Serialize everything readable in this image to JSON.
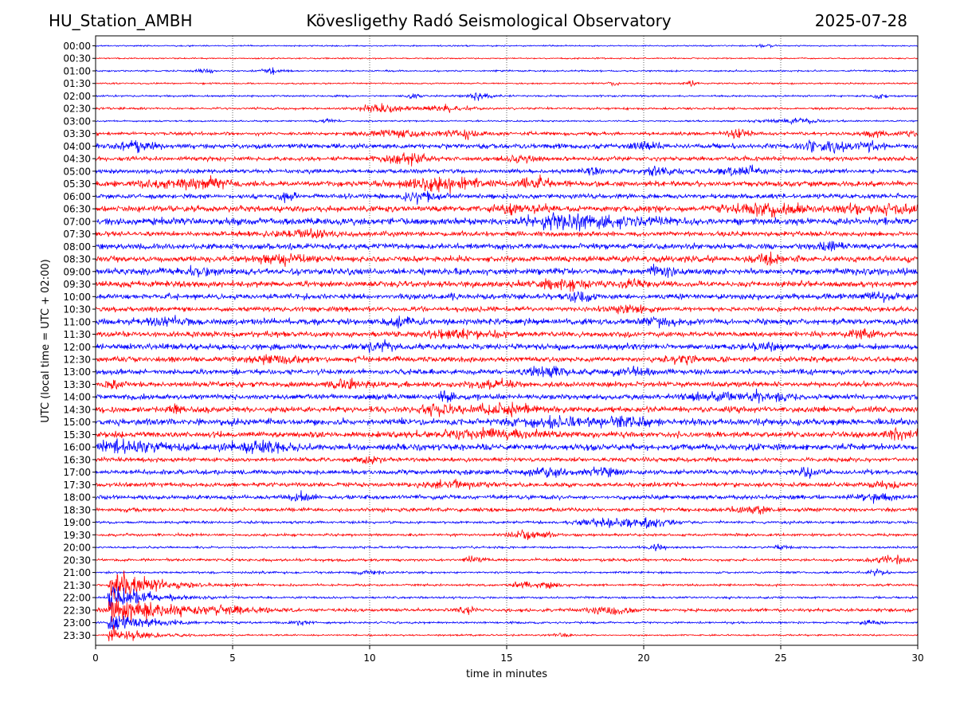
{
  "header": {
    "station": "HU_Station_AMBH",
    "observatory": "Kövesligethy Radó Seismological Observatory",
    "date": "2025-07-28"
  },
  "chart_data": {
    "type": "line",
    "xlabel": "time in minutes",
    "ylabel": "UTC (local time = UTC + 02:00)",
    "xlim": [
      0,
      30
    ],
    "xticks": [
      "0",
      "5",
      "10",
      "15",
      "20",
      "25",
      "30"
    ],
    "grid": "vertical dotted lines at 5-minute intervals",
    "trace_colors": [
      "#0000ff",
      "#ff0000"
    ],
    "rows": [
      {
        "label": "00:00",
        "noise": 0.25,
        "bursts": [
          [
            24.5,
            0.4,
            0.3
          ]
        ]
      },
      {
        "label": "00:30",
        "noise": 0.25,
        "bursts": []
      },
      {
        "label": "01:00",
        "noise": 0.3,
        "bursts": [
          [
            4,
            0.8,
            0.3
          ],
          [
            6.4,
            1.3,
            0.3
          ]
        ]
      },
      {
        "label": "01:30",
        "noise": 0.3,
        "bursts": [
          [
            18.9,
            0.9,
            0.2
          ],
          [
            21.7,
            0.9,
            0.2
          ]
        ]
      },
      {
        "label": "02:00",
        "noise": 0.35,
        "bursts": [
          [
            11.6,
            1.1,
            0.2
          ],
          [
            14,
            1.5,
            0.35
          ],
          [
            28.6,
            0.7,
            0.3
          ]
        ]
      },
      {
        "label": "02:30",
        "noise": 0.4,
        "bursts": [
          [
            10.5,
            1.5,
            0.9
          ],
          [
            12.8,
            1.3,
            0.7
          ]
        ]
      },
      {
        "label": "03:00",
        "noise": 0.3,
        "bursts": [
          [
            8.5,
            0.7,
            0.3
          ],
          [
            25.5,
            0.8,
            1.2
          ]
        ]
      },
      {
        "label": "03:30",
        "noise": 0.6,
        "bursts": [
          [
            11,
            1.5,
            1
          ],
          [
            13.5,
            1.3,
            0.8
          ],
          [
            23.4,
            1.5,
            0.4
          ],
          [
            28.5,
            1.2,
            0.4
          ],
          [
            29.7,
            1,
            0.4
          ]
        ]
      },
      {
        "label": "04:00",
        "noise": 0.9,
        "bursts": [
          [
            1.5,
            1.3,
            0.7
          ],
          [
            20,
            1.5,
            0.5
          ],
          [
            26.7,
            1.5,
            1.2
          ],
          [
            28.4,
            1.3,
            0.4
          ]
        ]
      },
      {
        "label": "04:30",
        "noise": 0.8,
        "bursts": [
          [
            11.3,
            1.8,
            0.7
          ],
          [
            15.5,
            1.1,
            0.6
          ]
        ]
      },
      {
        "label": "05:00",
        "noise": 0.8,
        "bursts": [
          [
            20.6,
            1.5,
            0.6
          ],
          [
            23.4,
            1.4,
            0.9
          ],
          [
            18.2,
            1.1,
            0.3
          ]
        ]
      },
      {
        "label": "05:30",
        "noise": 1.0,
        "bursts": [
          [
            3.5,
            1.5,
            1.5
          ],
          [
            12.5,
            1.8,
            1.5
          ],
          [
            16,
            1.5,
            0.7
          ]
        ]
      },
      {
        "label": "06:00",
        "noise": 0.9,
        "bursts": [
          [
            7,
            1.6,
            0.3
          ],
          [
            11.9,
            1.6,
            0.6
          ]
        ]
      },
      {
        "label": "06:30",
        "noise": 1.1,
        "bursts": [
          [
            24.5,
            1.6,
            1.5
          ],
          [
            28.5,
            1.3,
            1.3
          ],
          [
            15.5,
            1.3,
            1
          ]
        ]
      },
      {
        "label": "07:00",
        "noise": 1.3,
        "bursts": [
          [
            18.8,
            1.6,
            2
          ],
          [
            16.8,
            1.5,
            1.2
          ]
        ]
      },
      {
        "label": "07:30",
        "noise": 0.9,
        "bursts": [
          [
            7.5,
            1.3,
            1
          ]
        ]
      },
      {
        "label": "08:00",
        "noise": 1.1,
        "bursts": [
          [
            26.8,
            1.4,
            0.6
          ]
        ]
      },
      {
        "label": "08:30",
        "noise": 1.1,
        "bursts": [
          [
            6.8,
            1.6,
            0.9
          ],
          [
            24.5,
            1.2,
            0.7
          ]
        ]
      },
      {
        "label": "09:00",
        "noise": 1.2,
        "bursts": [
          [
            20.6,
            1.4,
            0.4
          ],
          [
            3.8,
            1.3,
            0.4
          ]
        ]
      },
      {
        "label": "09:30",
        "noise": 1.1,
        "bursts": [
          [
            17,
            1.5,
            1.2
          ],
          [
            19.5,
            1.2,
            0.5
          ]
        ]
      },
      {
        "label": "10:00",
        "noise": 1.0,
        "bursts": [
          [
            17.7,
            1.8,
            0.4
          ],
          [
            28.5,
            1.2,
            0.6
          ]
        ]
      },
      {
        "label": "10:30",
        "noise": 0.9,
        "bursts": [
          [
            19.5,
            1.2,
            0.7
          ]
        ]
      },
      {
        "label": "11:00",
        "noise": 1.1,
        "bursts": [
          [
            2.5,
            1.3,
            1
          ],
          [
            11.2,
            1.3,
            0.8
          ],
          [
            20.5,
            1.3,
            0.8
          ]
        ]
      },
      {
        "label": "11:30",
        "noise": 1.0,
        "bursts": [
          [
            13.5,
            1.4,
            1.2
          ],
          [
            28,
            1.2,
            0.6
          ]
        ]
      },
      {
        "label": "12:00",
        "noise": 1.1,
        "bursts": [
          [
            10.5,
            1.3,
            0.6
          ],
          [
            24.5,
            1.3,
            0.5
          ]
        ]
      },
      {
        "label": "12:30",
        "noise": 1.0,
        "bursts": [
          [
            6.5,
            1.3,
            1
          ],
          [
            21.5,
            1.2,
            0.8
          ]
        ]
      },
      {
        "label": "13:00",
        "noise": 1.0,
        "bursts": [
          [
            16.5,
            1.5,
            0.7
          ],
          [
            19.5,
            1.3,
            0.8
          ]
        ]
      },
      {
        "label": "13:30",
        "noise": 1.0,
        "bursts": [
          [
            0.6,
            1.6,
            0.3
          ],
          [
            9.3,
            1.2,
            0.8
          ],
          [
            14.5,
            1.2,
            0.8
          ]
        ]
      },
      {
        "label": "14:00",
        "noise": 1.0,
        "bursts": [
          [
            12.8,
            2.0,
            0.3
          ],
          [
            24.5,
            1.8,
            0.8
          ],
          [
            22.5,
            1.4,
            0.8
          ]
        ]
      },
      {
        "label": "14:30",
        "noise": 1.1,
        "bursts": [
          [
            12.6,
            2.0,
            0.6
          ],
          [
            15,
            1.5,
            1.2
          ],
          [
            3,
            1.2,
            0.3
          ]
        ]
      },
      {
        "label": "15:00",
        "noise": 1.2,
        "bursts": [
          [
            16.5,
            1.5,
            1.5
          ],
          [
            19.5,
            1.2,
            0.8
          ]
        ]
      },
      {
        "label": "15:30",
        "noise": 1.1,
        "bursts": [
          [
            14.5,
            1.4,
            2
          ],
          [
            29.5,
            1.6,
            0.8
          ]
        ]
      },
      {
        "label": "16:00",
        "noise": 1.2,
        "bursts": [
          [
            1.2,
            1.6,
            1.5
          ],
          [
            6,
            1.8,
            1.2
          ]
        ]
      },
      {
        "label": "16:30",
        "noise": 0.8,
        "bursts": [
          [
            10,
            1.2,
            0.4
          ]
        ]
      },
      {
        "label": "17:00",
        "noise": 0.9,
        "bursts": [
          [
            16.5,
            1.4,
            0.8
          ],
          [
            26,
            1.6,
            0.4
          ],
          [
            18.5,
            1.2,
            0.6
          ]
        ]
      },
      {
        "label": "17:30",
        "noise": 0.8,
        "bursts": [
          [
            13,
            1.2,
            1.2
          ],
          [
            28.8,
            1.1,
            0.5
          ]
        ]
      },
      {
        "label": "18:00",
        "noise": 0.8,
        "bursts": [
          [
            7.5,
            1.2,
            0.5
          ],
          [
            28.5,
            1.2,
            0.7
          ]
        ]
      },
      {
        "label": "18:30",
        "noise": 0.7,
        "bursts": [
          [
            24,
            1.6,
            0.7
          ]
        ]
      },
      {
        "label": "19:00",
        "noise": 0.5,
        "bursts": [
          [
            19,
            1.7,
            1.3
          ],
          [
            20.5,
            1.3,
            0.6
          ]
        ]
      },
      {
        "label": "19:30",
        "noise": 0.5,
        "bursts": [
          [
            16,
            1.3,
            0.8
          ]
        ]
      },
      {
        "label": "20:00",
        "noise": 0.4,
        "bursts": [
          [
            20.5,
            1.3,
            0.3
          ],
          [
            25,
            0.8,
            0.4
          ]
        ]
      },
      {
        "label": "20:30",
        "noise": 0.5,
        "bursts": [
          [
            13.8,
            1.3,
            0.3
          ],
          [
            29,
            1.0,
            0.8
          ]
        ]
      },
      {
        "label": "21:00",
        "noise": 0.4,
        "bursts": [
          [
            28.5,
            1.1,
            0.3
          ],
          [
            10,
            0.7,
            0.5
          ]
        ]
      },
      {
        "label": "21:30",
        "noise": 0.4,
        "bursts": [
          [
            15.6,
            1.3,
            0.3
          ],
          [
            16.5,
            1.1,
            0.5
          ]
        ]
      },
      {
        "label": "22:00",
        "noise": 0.4,
        "bursts": []
      },
      {
        "label": "22:30",
        "noise": 0.6,
        "bursts": [
          [
            2,
            1.6,
            1.5
          ],
          [
            5,
            1.5,
            1.2
          ],
          [
            18.8,
            1.5,
            0.8
          ],
          [
            13.5,
            1.0,
            0.3
          ]
        ]
      },
      {
        "label": "23:00",
        "noise": 0.4,
        "bursts": [
          [
            28.2,
            1.1,
            0.3
          ],
          [
            7.5,
            0.8,
            0.4
          ]
        ]
      },
      {
        "label": "23:30",
        "noise": 0.3,
        "bursts": [
          [
            17,
            0.9,
            0.3
          ]
        ]
      }
    ],
    "event": {
      "row": "21:30",
      "start_min": 0.45,
      "peak": 8,
      "decay_min": 1.2
    }
  }
}
